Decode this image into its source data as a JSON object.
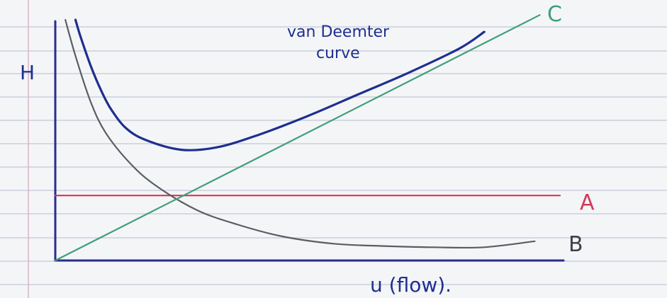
{
  "chart_data": {
    "type": "line",
    "title": "",
    "xlabel": "u (flow).",
    "ylabel": "H",
    "grid": false,
    "annotation": {
      "text_line1": "van Deemter",
      "text_line2": "curve"
    },
    "series": [
      {
        "name": "van Deemter curve",
        "color": "#1e2f8f",
        "points": [
          [
            0.04,
            1.0
          ],
          [
            0.05,
            0.93
          ],
          [
            0.07,
            0.81
          ],
          [
            0.09,
            0.71
          ],
          [
            0.11,
            0.63
          ],
          [
            0.14,
            0.55
          ],
          [
            0.18,
            0.5
          ],
          [
            0.25,
            0.46
          ],
          [
            0.32,
            0.47
          ],
          [
            0.4,
            0.52
          ],
          [
            0.5,
            0.6
          ],
          [
            0.6,
            0.69
          ],
          [
            0.7,
            0.78
          ],
          [
            0.8,
            0.88
          ],
          [
            0.85,
            0.95
          ]
        ]
      },
      {
        "name": "A",
        "color": "#cf3a5a",
        "points": [
          [
            0.0,
            0.27
          ],
          [
            1.0,
            0.27
          ]
        ]
      },
      {
        "name": "B",
        "color": "#5a5d63",
        "points": [
          [
            0.02,
            1.0
          ],
          [
            0.04,
            0.85
          ],
          [
            0.07,
            0.66
          ],
          [
            0.1,
            0.53
          ],
          [
            0.15,
            0.4
          ],
          [
            0.2,
            0.31
          ],
          [
            0.28,
            0.21
          ],
          [
            0.36,
            0.15
          ],
          [
            0.45,
            0.1
          ],
          [
            0.55,
            0.07
          ],
          [
            0.65,
            0.06
          ],
          [
            0.75,
            0.055
          ],
          [
            0.85,
            0.055
          ],
          [
            0.95,
            0.08
          ]
        ]
      },
      {
        "name": "C",
        "color": "#3f9e79",
        "points": [
          [
            0.0,
            0.0
          ],
          [
            0.96,
            1.02
          ]
        ]
      }
    ]
  },
  "axes_color": "#2a2e8a",
  "paper": {
    "background": "#f4f5f7",
    "rule_color": "#c9d0db",
    "margin_color": "#d7b7c4"
  }
}
